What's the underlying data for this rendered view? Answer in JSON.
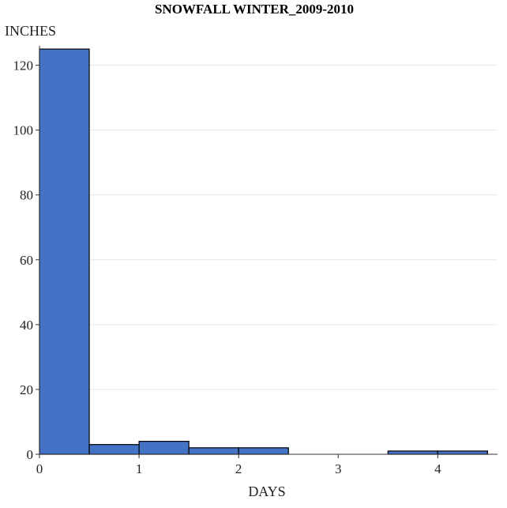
{
  "chart_data": {
    "type": "bar",
    "title": "SNOWFALL WINTER_2009-2010",
    "xlabel": "DAYS",
    "ylabel": "INCHES",
    "x_ticks": [
      0,
      1,
      2,
      3,
      4
    ],
    "y_ticks": [
      0,
      20,
      40,
      60,
      80,
      100,
      120
    ],
    "xlim": [
      0,
      4.6
    ],
    "ylim": [
      0,
      126
    ],
    "grid": "horizontal",
    "bar_color": "#4472c4",
    "bars": [
      {
        "x0": 0.0,
        "x1": 0.5,
        "value": 125
      },
      {
        "x0": 0.5,
        "x1": 1.0,
        "value": 3
      },
      {
        "x0": 1.0,
        "x1": 1.5,
        "value": 4
      },
      {
        "x0": 1.5,
        "x1": 2.0,
        "value": 2
      },
      {
        "x0": 2.0,
        "x1": 2.5,
        "value": 2
      },
      {
        "x0": 3.5,
        "x1": 4.0,
        "value": 1
      },
      {
        "x0": 4.0,
        "x1": 4.5,
        "value": 1
      }
    ]
  }
}
